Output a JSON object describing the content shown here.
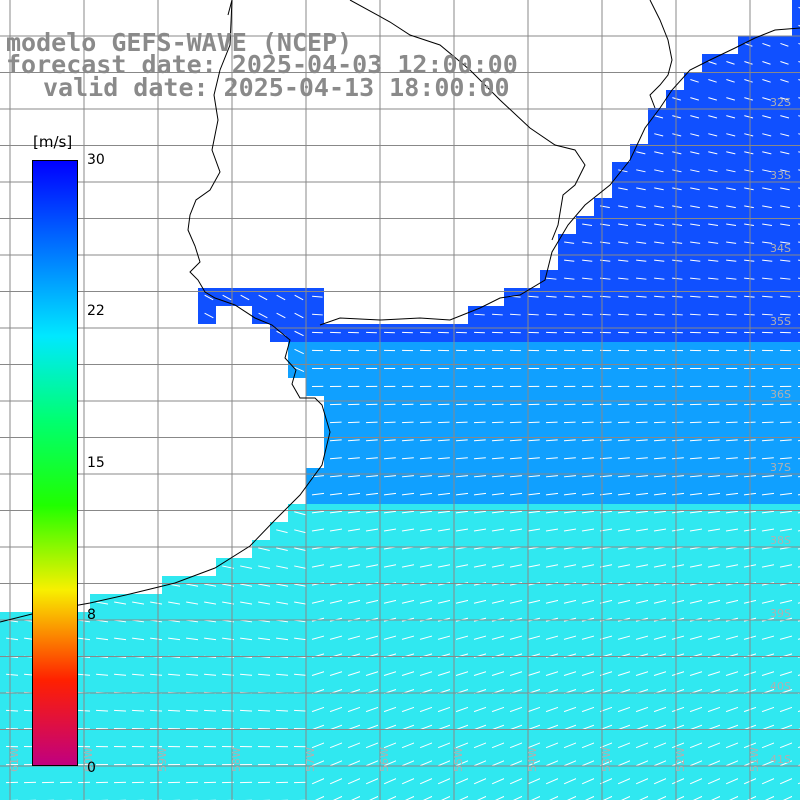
{
  "title": {
    "model": "modelo GEFS-WAVE (NCEP)",
    "forecast": "forecast date: 2025-04-03 12:00:00",
    "valid": "valid date: 2025-04-13 18:00:00"
  },
  "colorbar": {
    "unit": "[m/s]",
    "ticks": [
      "30",
      "22",
      "15",
      "8",
      "0"
    ],
    "min": 0,
    "max": 30,
    "stops": [
      "#0000ff",
      "#0070ff",
      "#00e8ff",
      "#00ff70",
      "#20ff00",
      "#f8f000",
      "#ff2000",
      "#c00080"
    ]
  },
  "map": {
    "ocean_color_weak": "#1050ff",
    "ocean_color_mid": "#10a0ff",
    "ocean_color_strong": "#30e8f0",
    "lat_labels": [
      "32S",
      "33S",
      "34S",
      "35S",
      "36S",
      "37S",
      "38S",
      "39S",
      "40S",
      "41S"
    ],
    "lon_labels": [
      "61W",
      "60W",
      "59W",
      "58W",
      "57W",
      "56W",
      "55W",
      "54W",
      "53W",
      "52W",
      "51W"
    ]
  }
}
